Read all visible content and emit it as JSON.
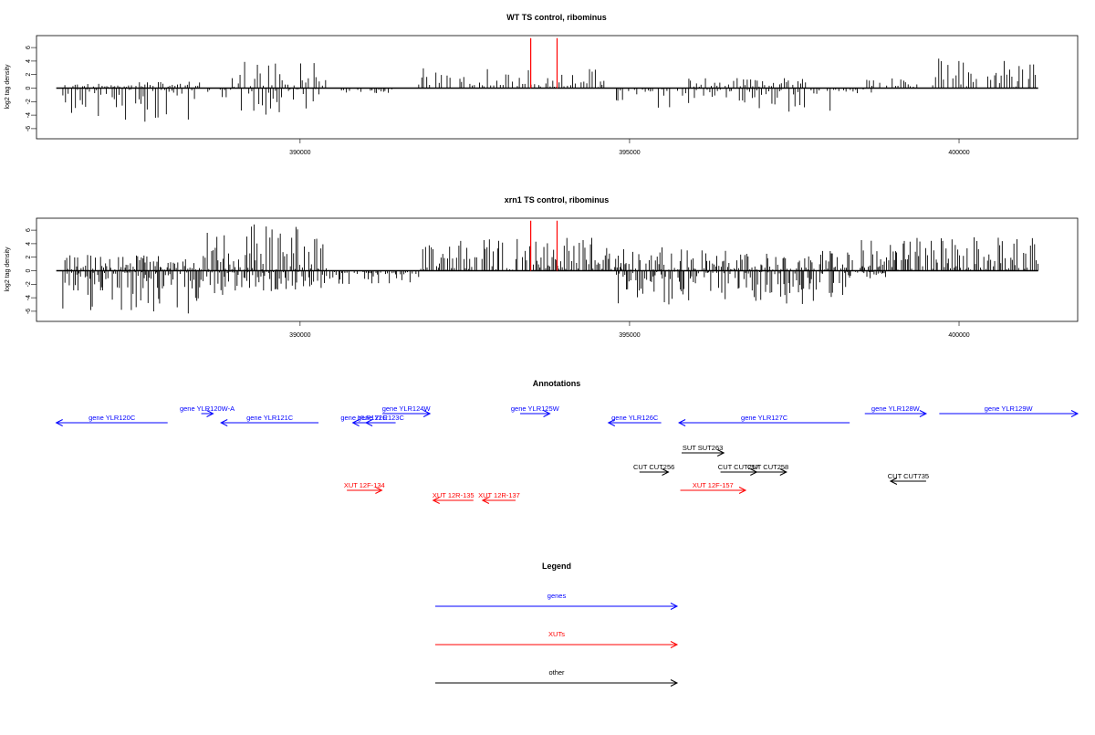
{
  "colors": {
    "gene": "#0000ff",
    "xut": "#ff0000",
    "other": "#000000",
    "bars": "#000000",
    "highlight": "#ff0000"
  },
  "chart_data": [
    {
      "type": "bar",
      "title": "WT TS control, ribominus",
      "ylabel": "log2 tag density",
      "xlim": [
        386000,
        401800
      ],
      "ylim": [
        -7,
        8
      ],
      "yticks": [
        -6,
        -4,
        -2,
        0,
        2,
        4,
        6
      ],
      "xticks": [
        390000,
        395000,
        400000
      ],
      "highlight_x": [
        393500,
        393900
      ],
      "highlight_height": 7.4,
      "plus_regions": [
        {
          "start": 386400,
          "end": 388500,
          "max": 1.0
        },
        {
          "start": 388900,
          "end": 390400,
          "max": 4.0
        },
        {
          "start": 391800,
          "end": 394700,
          "max": 3.0
        },
        {
          "start": 395900,
          "end": 397800,
          "max": 1.5
        },
        {
          "start": 398600,
          "end": 399400,
          "max": 1.5
        },
        {
          "start": 399600,
          "end": 401200,
          "max": 5.0
        }
      ],
      "minus_regions": [
        {
          "start": 386400,
          "end": 388400,
          "max": 5.0
        },
        {
          "start": 388600,
          "end": 390300,
          "max": 4.0
        },
        {
          "start": 390600,
          "end": 391400,
          "max": 0.8
        },
        {
          "start": 394800,
          "end": 398200,
          "max": 3.5
        },
        {
          "start": 398200,
          "end": 398700,
          "max": 1.0
        }
      ],
      "bar_step": 36,
      "seed": 11
    },
    {
      "type": "bar",
      "title": "xrn1 TS control, ribominus",
      "ylabel": "log2 tag density",
      "xlim": [
        386000,
        401800
      ],
      "ylim": [
        -7,
        8
      ],
      "yticks": [
        -6,
        -4,
        -2,
        0,
        2,
        4,
        6
      ],
      "xticks": [
        390000,
        395000,
        400000
      ],
      "highlight_x": [
        393500,
        393900
      ],
      "highlight_height": 7.4,
      "plus_regions": [
        {
          "start": 386400,
          "end": 388500,
          "max": 2.5
        },
        {
          "start": 388500,
          "end": 390400,
          "max": 7.0
        },
        {
          "start": 391800,
          "end": 394600,
          "max": 5.0
        },
        {
          "start": 394600,
          "end": 396100,
          "max": 3.5
        },
        {
          "start": 396100,
          "end": 398400,
          "max": 3.0
        },
        {
          "start": 398500,
          "end": 401200,
          "max": 5.0
        }
      ],
      "minus_regions": [
        {
          "start": 386400,
          "end": 388500,
          "max": 6.5
        },
        {
          "start": 388500,
          "end": 390400,
          "max": 4.0
        },
        {
          "start": 390400,
          "end": 391800,
          "max": 2.0
        },
        {
          "start": 394800,
          "end": 398300,
          "max": 5.0
        },
        {
          "start": 398300,
          "end": 398900,
          "max": 1.2
        }
      ],
      "bar_step": 22,
      "seed": 29
    }
  ],
  "annotations": {
    "title": "Annotations",
    "features": [
      {
        "label": "gene YLR120C",
        "type": "gene",
        "start": 386300,
        "end": 387990,
        "strand": "-",
        "row": 2
      },
      {
        "label": "gene YLR120W-A",
        "type": "gene",
        "start": 388500,
        "end": 388680,
        "strand": "+",
        "row": 1
      },
      {
        "label": "gene YLR121C",
        "type": "gene",
        "start": 388800,
        "end": 390280,
        "strand": "-",
        "row": 2
      },
      {
        "label": "gene YLR122C",
        "type": "gene",
        "start": 390800,
        "end": 391140,
        "strand": "-",
        "row": 2
      },
      {
        "label": "gene YLR123C",
        "type": "gene",
        "start": 391000,
        "end": 391450,
        "strand": "-",
        "row": 2
      },
      {
        "label": "gene YLR124W",
        "type": "gene",
        "start": 391250,
        "end": 391970,
        "strand": "+",
        "row": 1
      },
      {
        "label": "gene YLR125W",
        "type": "gene",
        "start": 393340,
        "end": 393790,
        "strand": "+",
        "row": 1
      },
      {
        "label": "gene YLR126C",
        "type": "gene",
        "start": 394680,
        "end": 395480,
        "strand": "-",
        "row": 2
      },
      {
        "label": "gene YLR127C",
        "type": "gene",
        "start": 395750,
        "end": 398340,
        "strand": "-",
        "row": 2
      },
      {
        "label": "gene YLR128W",
        "type": "gene",
        "start": 398570,
        "end": 399500,
        "strand": "+",
        "row": 1
      },
      {
        "label": "gene YLR129W",
        "type": "gene",
        "start": 399700,
        "end": 401800,
        "strand": "+",
        "row": 1
      },
      {
        "label": "SUT SUT263",
        "type": "other",
        "start": 395790,
        "end": 396430,
        "strand": "+",
        "row": 3
      },
      {
        "label": "CUT CUT256",
        "type": "other",
        "start": 395150,
        "end": 395590,
        "strand": "+",
        "row": 4
      },
      {
        "label": "CUT CUT257",
        "type": "other",
        "start": 396380,
        "end": 396930,
        "strand": "+",
        "row": 4
      },
      {
        "label": "CUT CUT258",
        "type": "other",
        "start": 396820,
        "end": 397380,
        "strand": "+",
        "row": 4
      },
      {
        "label": "CUT CUT735",
        "type": "other",
        "start": 398960,
        "end": 399500,
        "strand": "-",
        "row": 5
      },
      {
        "label": "XUT 12F-134",
        "type": "xut",
        "start": 390710,
        "end": 391240,
        "strand": "+",
        "row": 6
      },
      {
        "label": "XUT 12R-135",
        "type": "xut",
        "start": 392020,
        "end": 392630,
        "strand": "-",
        "row": 7
      },
      {
        "label": "XUT 12R-137",
        "type": "xut",
        "start": 392770,
        "end": 393270,
        "strand": "-",
        "row": 7
      },
      {
        "label": "XUT 12F-157",
        "type": "xut",
        "start": 395770,
        "end": 396760,
        "strand": "+",
        "row": 6
      }
    ]
  },
  "legend": {
    "title": "Legend",
    "items": [
      {
        "label": "genes",
        "type": "gene"
      },
      {
        "label": "XUTs",
        "type": "xut"
      },
      {
        "label": "other",
        "type": "other"
      }
    ]
  }
}
